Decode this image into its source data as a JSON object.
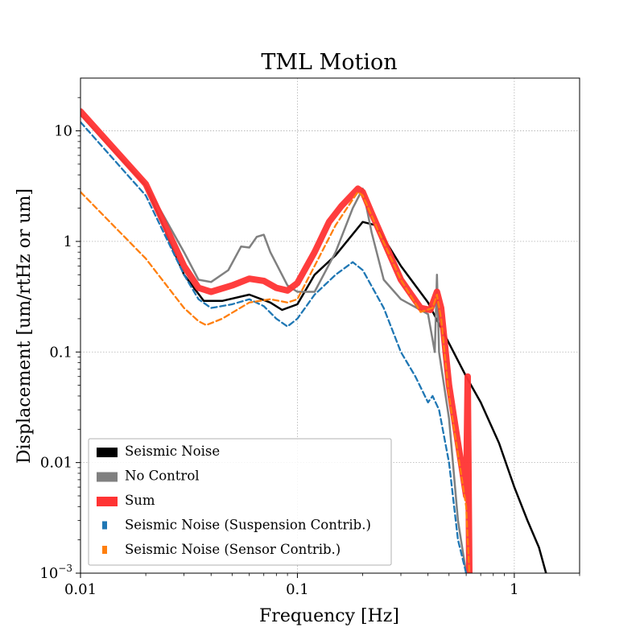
{
  "chart_data": {
    "type": "line",
    "title": "TML Motion",
    "xlabel": "Frequency [Hz]",
    "ylabel": "Displacement [um/rtHz or um]",
    "x_scale": "log",
    "y_scale": "log",
    "xlim": [
      0.01,
      2
    ],
    "ylim": [
      0.001,
      30
    ],
    "grid": true,
    "legend_position": "lower-left",
    "x_ticks": [
      {
        "value": 0.01,
        "label": "0.01"
      },
      {
        "value": 0.1,
        "label": "0.1"
      },
      {
        "value": 1,
        "label": "1"
      }
    ],
    "y_ticks": [
      {
        "value": 0.001,
        "label": "10",
        "sup": "−3"
      },
      {
        "value": 0.01,
        "label": "0.01"
      },
      {
        "value": 0.1,
        "label": "0.1"
      },
      {
        "value": 1,
        "label": "1"
      },
      {
        "value": 10,
        "label": "10"
      }
    ],
    "series": [
      {
        "name": "Seismic Noise",
        "color": "#000000",
        "style": "solid",
        "points": [
          [
            0.01,
            14
          ],
          [
            0.02,
            3.2
          ],
          [
            0.03,
            0.5
          ],
          [
            0.037,
            0.29
          ],
          [
            0.045,
            0.29
          ],
          [
            0.06,
            0.33
          ],
          [
            0.075,
            0.28
          ],
          [
            0.085,
            0.24
          ],
          [
            0.1,
            0.27
          ],
          [
            0.12,
            0.5
          ],
          [
            0.15,
            0.75
          ],
          [
            0.2,
            1.5
          ],
          [
            0.23,
            1.4
          ],
          [
            0.3,
            0.6
          ],
          [
            0.4,
            0.28
          ],
          [
            0.5,
            0.12
          ],
          [
            0.6,
            0.06
          ],
          [
            0.7,
            0.035
          ],
          [
            0.85,
            0.015
          ],
          [
            1,
            0.006
          ],
          [
            1.15,
            0.003
          ],
          [
            1.3,
            0.0017
          ],
          [
            1.4,
            0.001
          ]
        ]
      },
      {
        "name": "No Control",
        "color": "#808080",
        "style": "solid",
        "points": [
          [
            0.01,
            14
          ],
          [
            0.02,
            3.3
          ],
          [
            0.03,
            0.8
          ],
          [
            0.035,
            0.45
          ],
          [
            0.04,
            0.43
          ],
          [
            0.048,
            0.55
          ],
          [
            0.055,
            0.9
          ],
          [
            0.06,
            0.88
          ],
          [
            0.065,
            1.1
          ],
          [
            0.07,
            1.15
          ],
          [
            0.075,
            0.8
          ],
          [
            0.09,
            0.4
          ],
          [
            0.1,
            0.35
          ],
          [
            0.12,
            0.35
          ],
          [
            0.15,
            0.8
          ],
          [
            0.18,
            2.0
          ],
          [
            0.2,
            3.0
          ],
          [
            0.22,
            1.2
          ],
          [
            0.25,
            0.45
          ],
          [
            0.3,
            0.3
          ],
          [
            0.4,
            0.22
          ],
          [
            0.43,
            0.1
          ],
          [
            0.44,
            0.5
          ],
          [
            0.45,
            0.1
          ],
          [
            0.5,
            0.025
          ],
          [
            0.55,
            0.003
          ],
          [
            0.6,
            0.001
          ]
        ]
      },
      {
        "name": "Sum",
        "color": "#ff3333",
        "style": "solid",
        "points": [
          [
            0.01,
            15
          ],
          [
            0.02,
            3.3
          ],
          [
            0.03,
            0.6
          ],
          [
            0.035,
            0.38
          ],
          [
            0.04,
            0.35
          ],
          [
            0.05,
            0.4
          ],
          [
            0.06,
            0.46
          ],
          [
            0.07,
            0.44
          ],
          [
            0.08,
            0.38
          ],
          [
            0.09,
            0.36
          ],
          [
            0.1,
            0.42
          ],
          [
            0.12,
            0.8
          ],
          [
            0.14,
            1.5
          ],
          [
            0.16,
            2.1
          ],
          [
            0.19,
            3.0
          ],
          [
            0.2,
            2.8
          ],
          [
            0.22,
            1.8
          ],
          [
            0.26,
            0.85
          ],
          [
            0.3,
            0.45
          ],
          [
            0.37,
            0.25
          ],
          [
            0.41,
            0.24
          ],
          [
            0.44,
            0.35
          ],
          [
            0.46,
            0.25
          ],
          [
            0.5,
            0.05
          ],
          [
            0.55,
            0.015
          ],
          [
            0.6,
            0.005
          ],
          [
            0.61,
            0.06
          ],
          [
            0.62,
            0.001
          ]
        ]
      },
      {
        "name": "Seismic Noise (Suspension Contrib.)",
        "color": "#1f77b4",
        "style": "dashed",
        "points": [
          [
            0.01,
            12
          ],
          [
            0.02,
            2.6
          ],
          [
            0.03,
            0.5
          ],
          [
            0.035,
            0.3
          ],
          [
            0.04,
            0.25
          ],
          [
            0.05,
            0.27
          ],
          [
            0.06,
            0.3
          ],
          [
            0.07,
            0.26
          ],
          [
            0.08,
            0.2
          ],
          [
            0.09,
            0.17
          ],
          [
            0.1,
            0.2
          ],
          [
            0.12,
            0.33
          ],
          [
            0.15,
            0.5
          ],
          [
            0.18,
            0.65
          ],
          [
            0.2,
            0.55
          ],
          [
            0.25,
            0.25
          ],
          [
            0.3,
            0.1
          ],
          [
            0.35,
            0.06
          ],
          [
            0.4,
            0.035
          ],
          [
            0.42,
            0.04
          ],
          [
            0.45,
            0.03
          ],
          [
            0.5,
            0.01
          ],
          [
            0.55,
            0.002
          ],
          [
            0.6,
            0.001
          ]
        ]
      },
      {
        "name": "Seismic Noise (Sensor Contrib.)",
        "color": "#ff7f0e",
        "style": "dashed",
        "points": [
          [
            0.01,
            2.8
          ],
          [
            0.02,
            0.7
          ],
          [
            0.03,
            0.25
          ],
          [
            0.035,
            0.19
          ],
          [
            0.038,
            0.175
          ],
          [
            0.045,
            0.2
          ],
          [
            0.06,
            0.28
          ],
          [
            0.075,
            0.3
          ],
          [
            0.09,
            0.28
          ],
          [
            0.1,
            0.3
          ],
          [
            0.12,
            0.6
          ],
          [
            0.15,
            1.4
          ],
          [
            0.18,
            2.4
          ],
          [
            0.19,
            2.8
          ],
          [
            0.2,
            2.6
          ],
          [
            0.23,
            1.4
          ],
          [
            0.3,
            0.45
          ],
          [
            0.37,
            0.23
          ],
          [
            0.42,
            0.25
          ],
          [
            0.44,
            0.33
          ],
          [
            0.46,
            0.2
          ],
          [
            0.5,
            0.04
          ],
          [
            0.55,
            0.012
          ],
          [
            0.6,
            0.004
          ],
          [
            0.62,
            0.001
          ]
        ]
      }
    ]
  }
}
